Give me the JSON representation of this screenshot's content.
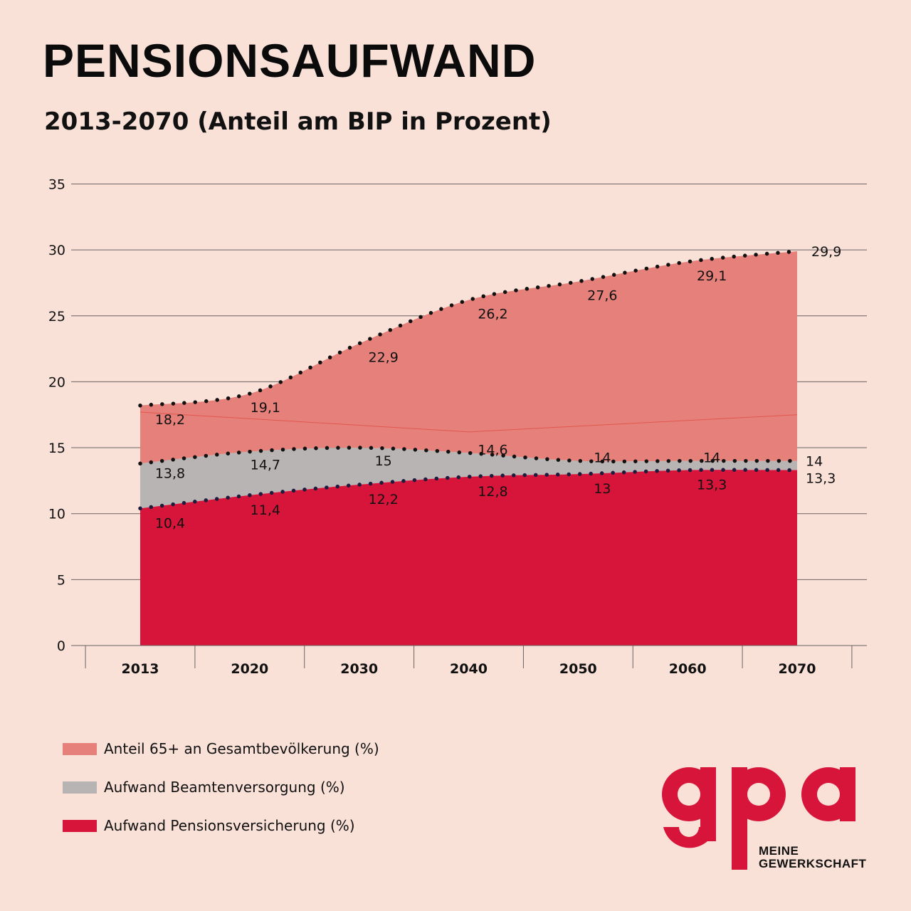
{
  "title": "PENSIONSAUFWAND",
  "subtitle": "2013-2070 (Anteil am BIP in Prozent)",
  "colors": {
    "background": "#f9e1d8",
    "anteil_65": "#e5817a",
    "beamten": "#b8b4b3",
    "pension": "#d7153a",
    "line_65_inner": "#e2574f"
  },
  "legend": [
    {
      "label": "Anteil 65+ an Gesamtbevölkerung (%)",
      "color": "#e5817a"
    },
    {
      "label": "Aufwand Beamtenversorgung (%)",
      "color": "#b8b4b3"
    },
    {
      "label": "Aufwand Pensionsversicherung (%)",
      "color": "#d7153a"
    }
  ],
  "logo": {
    "wordmark": "gpa",
    "line1": "MEINE",
    "line2": "GEWERKSCHAFT"
  },
  "chart_data": {
    "type": "area",
    "categories": [
      "2013",
      "2020",
      "2030",
      "2040",
      "2050",
      "2060",
      "2070"
    ],
    "ylim": [
      0,
      35
    ],
    "yticks": [
      "0",
      "5",
      "10",
      "15",
      "20",
      "25",
      "30",
      "35"
    ],
    "grid": true,
    "legend_position": "bottom-left",
    "series": [
      {
        "name": "Anteil 65+ an Gesamtbevölkerung (%)",
        "values": [
          18.2,
          19.1,
          22.9,
          26.2,
          27.6,
          29.1,
          29.9
        ],
        "labels": [
          "18,2",
          "19,1",
          "22,9",
          "26,2",
          "27,6",
          "29,1",
          "29,9"
        ]
      },
      {
        "name": "Aufwand Beamtenversorgung (%)",
        "values": [
          13.8,
          14.7,
          15,
          14.6,
          14,
          14,
          14
        ],
        "labels": [
          "13,8",
          "14,7",
          "15",
          "14,6",
          "14",
          "14",
          "14"
        ]
      },
      {
        "name": "Aufwand Pensionsversicherung (%)",
        "values": [
          10.4,
          11.4,
          12.2,
          12.8,
          13,
          13.3,
          13.3
        ],
        "labels": [
          "10,4",
          "11,4",
          "12,2",
          "12,8",
          "13",
          "13,3",
          "13,3"
        ]
      }
    ]
  }
}
